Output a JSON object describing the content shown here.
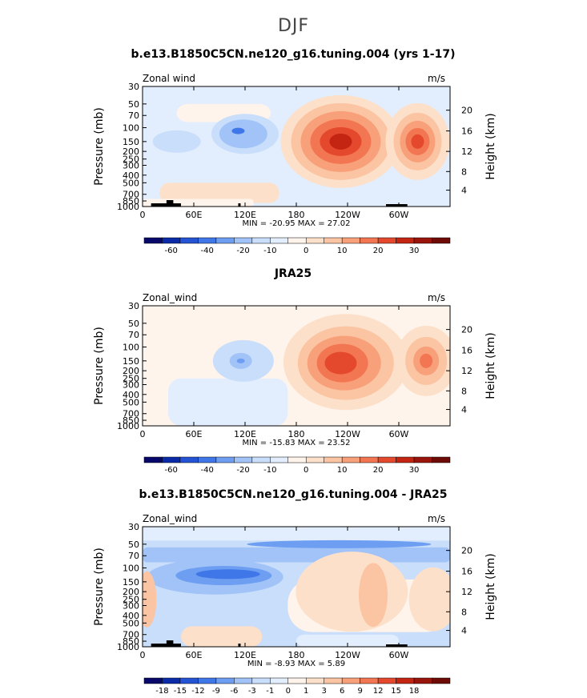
{
  "page": {
    "season": "DJF"
  },
  "chart_data": [
    {
      "type": "contour",
      "title": "b.e13.B1850C5CN.ne120_g16.tuning.004 (yrs 1-17)",
      "variable": "Zonal wind",
      "units": "m/s",
      "xlabel": "",
      "ylabel": "Pressure (mb)",
      "y2label": "Height (km)",
      "x_ticks": [
        "0",
        "60E",
        "120E",
        "180",
        "120W",
        "60W"
      ],
      "x_tick_lon": [
        0,
        60,
        120,
        180,
        240,
        300
      ],
      "xlim": [
        0,
        360
      ],
      "y_ticks": [
        30,
        50,
        70,
        100,
        150,
        200,
        250,
        300,
        400,
        500,
        700,
        850,
        1000
      ],
      "ylim": [
        1000,
        30
      ],
      "y2_ticks": [
        4,
        8,
        12,
        16,
        20
      ],
      "min_max": "MIN = -20.95   MAX =  27.02",
      "colorbar_labels": [
        "-60",
        "-40",
        "-20",
        "-10",
        "0",
        "10",
        "20",
        "30"
      ],
      "colorbar_colors": [
        "#08086b",
        "#0a2aa8",
        "#2453d4",
        "#3f76e8",
        "#6d9ef2",
        "#a1c3f7",
        "#c9defb",
        "#e2eefd",
        "#fff4eb",
        "#fde0c9",
        "#fbc4a2",
        "#f8a07a",
        "#f27651",
        "#e5492d",
        "#c42412",
        "#99140a",
        "#6e0b06"
      ],
      "features": [
        {
          "kind": "jet_max",
          "lon": 232,
          "p": 150,
          "level": "strong"
        },
        {
          "kind": "jet_max",
          "lon": 322,
          "p": 150,
          "level": "medium"
        },
        {
          "kind": "easterly_min",
          "lon": 120,
          "p": 110,
          "level": "weak"
        }
      ]
    },
    {
      "type": "contour",
      "title": "JRA25",
      "variable": "Zonal_wind",
      "units": "m/s",
      "xlabel": "",
      "ylabel": "Pressure (mb)",
      "y2label": "Height (km)",
      "x_ticks": [
        "0",
        "60E",
        "120E",
        "180",
        "120W",
        "60W"
      ],
      "x_tick_lon": [
        0,
        60,
        120,
        180,
        240,
        300
      ],
      "xlim": [
        0,
        360
      ],
      "y_ticks": [
        30,
        50,
        70,
        100,
        150,
        200,
        250,
        300,
        400,
        500,
        700,
        850,
        1000
      ],
      "ylim": [
        1000,
        30
      ],
      "y2_ticks": [
        4,
        8,
        12,
        16,
        20
      ],
      "min_max": "MIN = -15.83   MAX =  23.52",
      "colorbar_labels": [
        "-60",
        "-40",
        "-20",
        "-10",
        "0",
        "10",
        "20",
        "30"
      ],
      "colorbar_colors": [
        "#08086b",
        "#0a2aa8",
        "#2453d4",
        "#3f76e8",
        "#6d9ef2",
        "#a1c3f7",
        "#c9defb",
        "#e2eefd",
        "#fff4eb",
        "#fde0c9",
        "#fbc4a2",
        "#f8a07a",
        "#f27651",
        "#e5492d",
        "#c42412",
        "#99140a",
        "#6e0b06"
      ],
      "features": [
        {
          "kind": "jet_max",
          "lon": 235,
          "p": 160,
          "level": "strong"
        },
        {
          "kind": "jet_max",
          "lon": 330,
          "p": 150,
          "level": "medium"
        },
        {
          "kind": "easterly_min",
          "lon": 118,
          "p": 150,
          "level": "weak"
        }
      ]
    },
    {
      "type": "contour",
      "title": "b.e13.B1850C5CN.ne120_g16.tuning.004 - JRA25",
      "variable": "Zonal_wind",
      "units": "m/s",
      "xlabel": "",
      "ylabel": "Pressure (mb)",
      "y2label": "Height (km)",
      "x_ticks": [
        "0",
        "60E",
        "120E",
        "180",
        "120W",
        "60W"
      ],
      "x_tick_lon": [
        0,
        60,
        120,
        180,
        240,
        300
      ],
      "xlim": [
        0,
        360
      ],
      "y_ticks": [
        30,
        50,
        70,
        100,
        150,
        200,
        250,
        300,
        400,
        500,
        700,
        850,
        1000
      ],
      "ylim": [
        1000,
        30
      ],
      "y2_ticks": [
        4,
        8,
        12,
        16,
        20
      ],
      "min_max": "MIN =  -8.93   MAX =   5.89",
      "colorbar_labels": [
        "-18",
        "-15",
        "-12",
        "-9",
        "-6",
        "-3",
        "-1",
        "0",
        "1",
        "3",
        "6",
        "9",
        "12",
        "15",
        "18"
      ],
      "colorbar_colors": [
        "#08086b",
        "#0a2aa8",
        "#2453d4",
        "#3f76e8",
        "#6d9ef2",
        "#a1c3f7",
        "#c9defb",
        "#e2eefd",
        "#fff4eb",
        "#fde0c9",
        "#fbc4a2",
        "#f8a07a",
        "#f27651",
        "#e5492d",
        "#c42412",
        "#99140a",
        "#6e0b06"
      ],
      "features": [
        {
          "kind": "negative_band",
          "lon_range": [
            120,
            350
          ],
          "p": 50
        },
        {
          "kind": "negative_min",
          "lon": 90,
          "p": 130
        },
        {
          "kind": "positive_patch",
          "lon": 250,
          "p": 200
        }
      ]
    }
  ]
}
